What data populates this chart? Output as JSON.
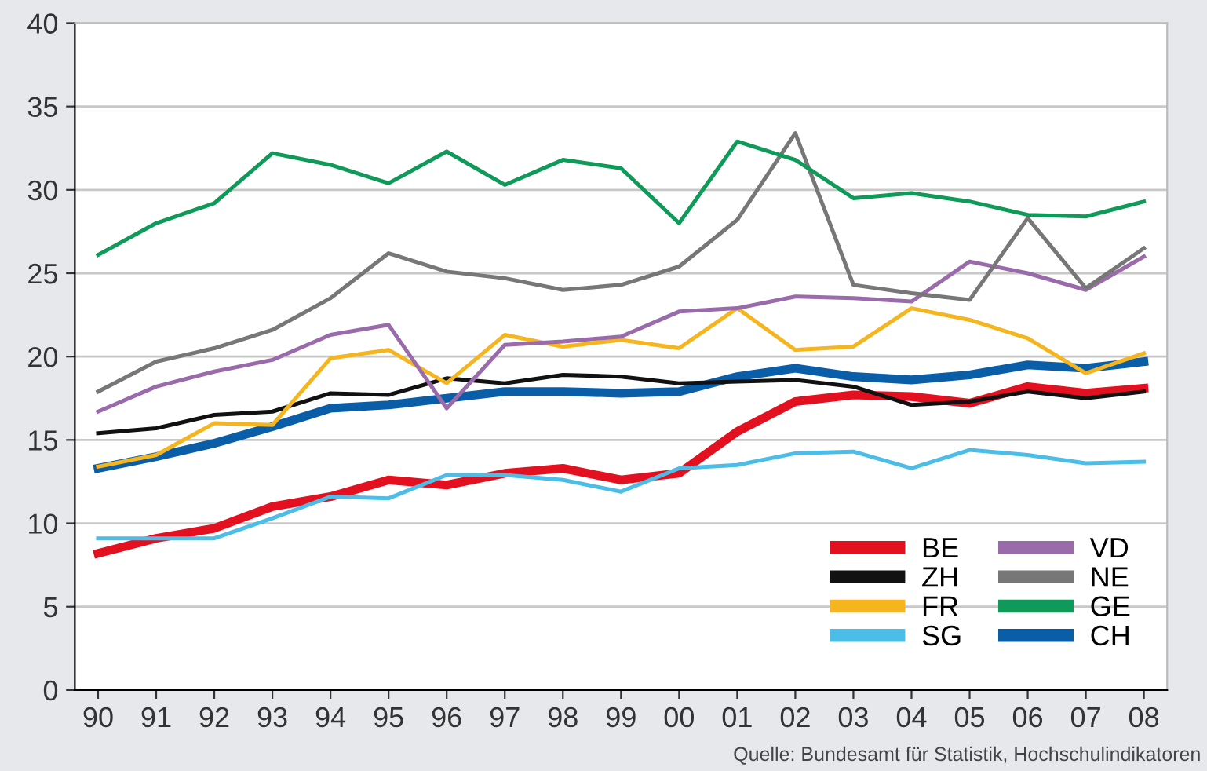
{
  "chart_data": {
    "type": "line",
    "categories": [
      "90",
      "91",
      "92",
      "93",
      "94",
      "95",
      "96",
      "97",
      "98",
      "99",
      "00",
      "01",
      "02",
      "03",
      "04",
      "05",
      "06",
      "07",
      "08"
    ],
    "ylim": [
      0,
      40
    ],
    "yticks": [
      0,
      5,
      10,
      15,
      20,
      25,
      30,
      35,
      40
    ],
    "grid": "y",
    "legend": "bottom right",
    "marker": "none",
    "line_style": "solid",
    "annotations": [
      "Quelle: Bundesamt für Statistik, Hochschulindikatoren"
    ],
    "series": [
      {
        "name": "BE",
        "color": "#e3101f",
        "values": [
          8.2,
          9.1,
          9.7,
          11.0,
          11.6,
          12.6,
          12.3,
          13.0,
          13.3,
          12.6,
          13.0,
          15.5,
          17.3,
          17.7,
          17.6,
          17.2,
          18.2,
          17.8,
          18.1
        ]
      },
      {
        "name": "ZH",
        "color": "#111111",
        "values": [
          15.4,
          15.7,
          16.5,
          16.7,
          17.8,
          17.7,
          18.7,
          18.4,
          18.9,
          18.8,
          18.4,
          18.5,
          18.6,
          18.2,
          17.1,
          17.3,
          17.9,
          17.5,
          17.9
        ]
      },
      {
        "name": "FR",
        "color": "#f5b51e",
        "values": [
          13.4,
          14.1,
          16.0,
          15.9,
          19.9,
          20.4,
          18.4,
          21.3,
          20.6,
          21.0,
          20.5,
          22.9,
          20.4,
          20.6,
          22.9,
          22.2,
          21.1,
          19.0,
          20.2
        ]
      },
      {
        "name": "SG",
        "color": "#4bbde6",
        "values": [
          9.1,
          9.1,
          9.1,
          10.3,
          11.6,
          11.5,
          12.9,
          12.9,
          12.6,
          11.9,
          13.3,
          13.5,
          14.2,
          14.3,
          13.3,
          14.4,
          14.1,
          13.6,
          13.7
        ]
      },
      {
        "name": "VD",
        "color": "#9a6bab",
        "values": [
          16.7,
          18.2,
          19.1,
          19.8,
          21.3,
          21.9,
          16.9,
          20.7,
          20.9,
          21.2,
          22.7,
          22.9,
          23.6,
          23.5,
          23.3,
          25.7,
          25.0,
          24.0,
          26.0
        ]
      },
      {
        "name": "NE",
        "color": "#777777",
        "values": [
          17.9,
          19.7,
          20.5,
          21.6,
          23.5,
          26.2,
          25.1,
          24.7,
          24.0,
          24.3,
          25.4,
          28.2,
          33.4,
          24.3,
          23.8,
          23.4,
          28.3,
          24.1,
          26.5
        ]
      },
      {
        "name": "GE",
        "color": "#0f9a5a",
        "values": [
          26.1,
          28.0,
          29.2,
          32.2,
          31.5,
          30.4,
          32.3,
          30.3,
          31.8,
          31.3,
          28.0,
          32.9,
          31.8,
          29.5,
          29.8,
          29.3,
          28.5,
          28.4,
          29.3
        ]
      },
      {
        "name": "CH",
        "color": "#0a5ea8",
        "values": [
          13.3,
          14.0,
          14.8,
          15.8,
          16.9,
          17.1,
          17.5,
          17.9,
          17.9,
          17.8,
          17.9,
          18.8,
          19.3,
          18.8,
          18.6,
          18.9,
          19.5,
          19.3,
          19.7
        ]
      }
    ]
  }
}
